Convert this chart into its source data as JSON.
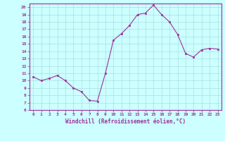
{
  "x": [
    0,
    1,
    2,
    3,
    4,
    5,
    6,
    7,
    8,
    9,
    10,
    11,
    12,
    13,
    14,
    15,
    16,
    17,
    18,
    19,
    20,
    21,
    22,
    23
  ],
  "y": [
    10.5,
    10.0,
    10.3,
    10.7,
    10.0,
    9.0,
    8.5,
    7.3,
    7.2,
    11.0,
    15.5,
    16.4,
    17.5,
    19.0,
    19.2,
    20.3,
    19.0,
    18.0,
    16.3,
    13.7,
    13.2,
    14.2,
    14.4,
    14.3
  ],
  "line_color": "#993399",
  "marker_color": "#993399",
  "bg_color": "#ccffff",
  "grid_color": "#aadddd",
  "xlabel": "Windchill (Refroidissement éolien,°C)",
  "xlabel_color": "#993399",
  "tick_color": "#993399",
  "spine_color": "#993399",
  "ylim": [
    6,
    20.5
  ],
  "xlim": [
    -0.5,
    23.5
  ],
  "yticks": [
    6,
    7,
    8,
    9,
    10,
    11,
    12,
    13,
    14,
    15,
    16,
    17,
    18,
    19,
    20
  ],
  "xticks": [
    0,
    1,
    2,
    3,
    4,
    5,
    6,
    7,
    8,
    9,
    10,
    11,
    12,
    13,
    14,
    15,
    16,
    17,
    18,
    19,
    20,
    21,
    22,
    23
  ]
}
